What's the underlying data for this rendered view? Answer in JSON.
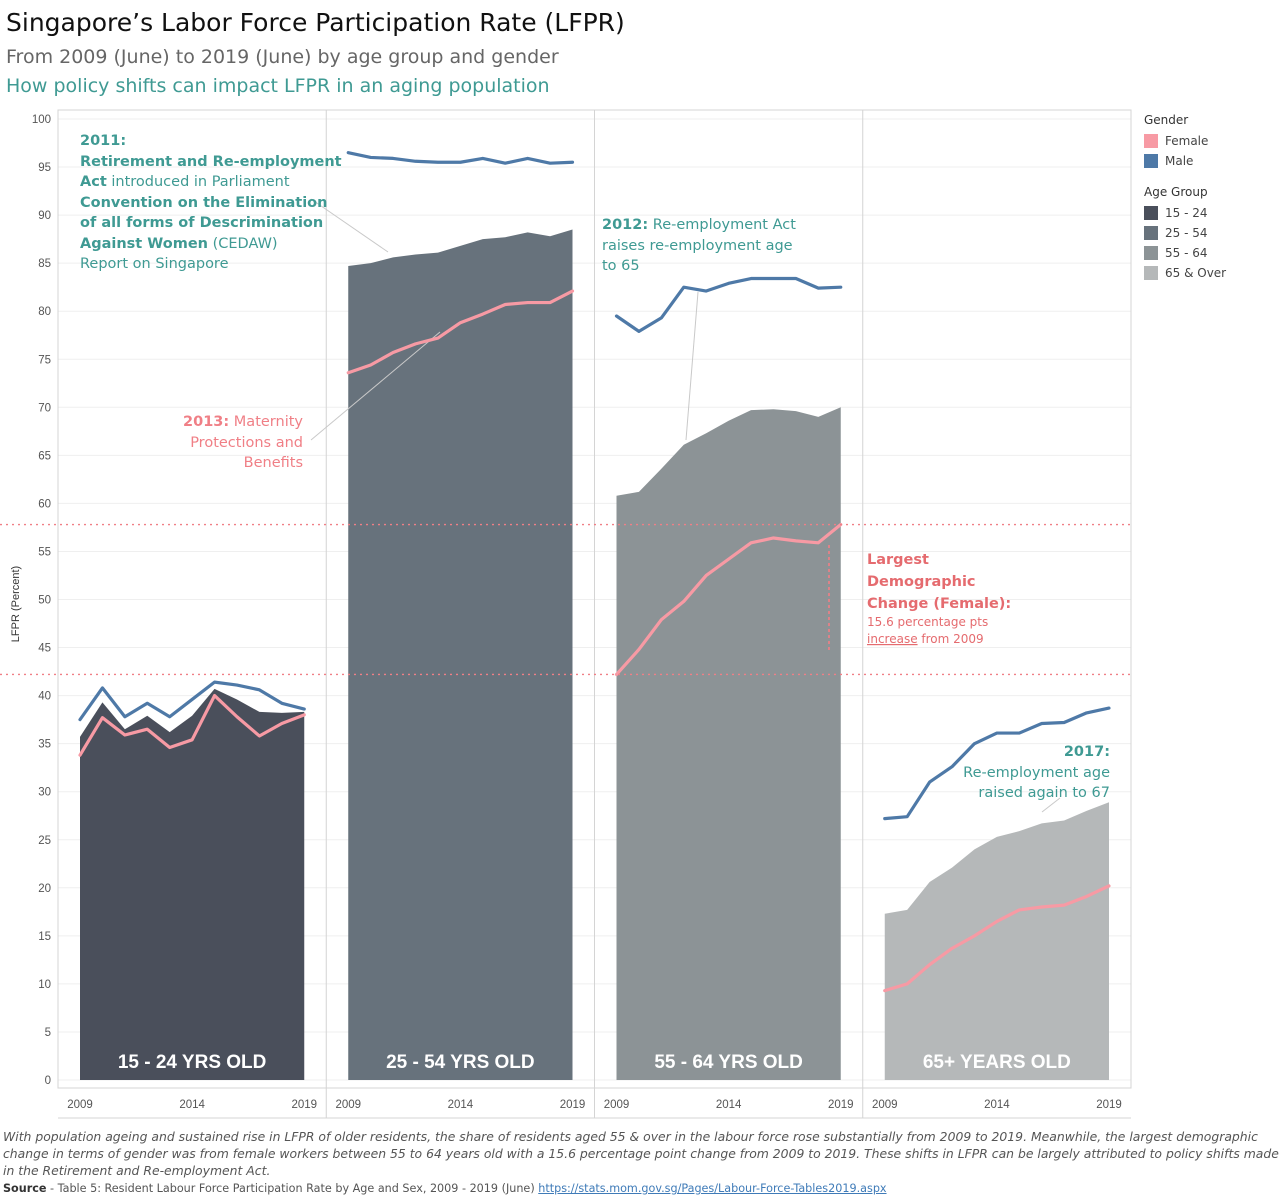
{
  "title": "Singapore’s Labor Force Participation Rate (LFPR)",
  "subtitle": "From 2009 (June) to 2019 (June) by age group and gender",
  "subtitle2": "How policy shifts can impact LFPR in an aging population",
  "colors": {
    "female": "#f79aa4",
    "male": "#4e79a7",
    "age_15_24": "#4a4f5b",
    "age_25_54": "#67727c",
    "age_55_64": "#8c9396",
    "age_65_over": "#b5b8b9",
    "teal_annotation": "#3f9a93",
    "pink_annotation": "#e56b6f"
  },
  "legend": {
    "gender_title": "Gender",
    "gender": [
      "Female",
      "Male"
    ],
    "age_title": "Age Group",
    "age_groups": [
      "15 - 24",
      "25 - 54",
      "55 - 64",
      "65 & Over"
    ]
  },
  "annotations": {
    "a2011_year": "2011:",
    "a2011_line1": "Retirement and Re-employment",
    "a2011_line2a": "Act",
    "a2011_line2b": " introduced in Parliament",
    "a2011_line3": "Convention on the Elimination",
    "a2011_line4": "of all forms of Descrimination",
    "a2011_line5a": "Against Women",
    "a2011_line5b": " (CEDAW)",
    "a2011_line6": "Report on Singapore",
    "a2013_line1a": "2013:",
    "a2013_line1b": " Maternity",
    "a2013_line2": "Protections and",
    "a2013_line3": "Benefits",
    "a2012_line1a": "2012:",
    "a2012_line1b": " Re-employment Act",
    "a2012_line2": "raises re-employment age",
    "a2012_line3": "to 65",
    "largest_line1": "Largest",
    "largest_line2": "Demographic",
    "largest_line3": "Change (Female):",
    "largest_line4": "15.6 percentage pts",
    "largest_line5a": "increase",
    "largest_line5b": " from 2009",
    "a2017_line1": "2017:",
    "a2017_line2": "Re-employment age",
    "a2017_line3": "raised again to 67"
  },
  "footer_text": "With population ageing and sustained rise in LFPR of older residents, the share of residents aged 55 & over in the labour force rose substantially from 2009 to 2019. Meanwhile, the largest demographic change in terms of gender was from female workers between 55 to 64 years old with a 15.6 percentage point change from 2009 to 2019. These shifts in LFPR can be largely attributed to policy shifts made in the Retirement and Re-employment Act.",
  "source_label": "Source",
  "source_text": " - Table 5: Resident Labour Force Participation Rate by Age and Sex, 2009 - 2019 (June) ",
  "source_link": "https://stats.mom.gov.sg/Pages/Labour-Force-Tables2019.aspx",
  "chart_data": {
    "type": "area",
    "ylabel": "LFPR (Percent)",
    "ylim": [
      0,
      100
    ],
    "yticks": [
      0,
      5,
      10,
      15,
      20,
      25,
      30,
      35,
      40,
      45,
      50,
      55,
      60,
      65,
      70,
      75,
      80,
      85,
      90,
      95,
      100
    ],
    "x": [
      2009,
      2010,
      2011,
      2012,
      2013,
      2014,
      2015,
      2016,
      2017,
      2018,
      2019
    ],
    "xtick_labels": [
      "2009",
      "2014",
      "2019"
    ],
    "reference_lines": [
      42.2,
      57.8
    ],
    "legend_position": "right",
    "panels": [
      {
        "label": "15 - 24 YRS OLD",
        "age_group": "15 - 24",
        "total": [
          35.7,
          39.3,
          36.5,
          37.9,
          36.2,
          37.9,
          40.7,
          39.6,
          38.3,
          38.2,
          38.3
        ],
        "male": [
          37.5,
          40.8,
          37.8,
          39.2,
          37.8,
          39.6,
          41.4,
          41.1,
          40.6,
          39.2,
          38.6
        ],
        "female": [
          33.8,
          37.7,
          35.9,
          36.5,
          34.6,
          35.4,
          40.0,
          37.8,
          35.8,
          37.1,
          38.0
        ]
      },
      {
        "label": "25 - 54 YRS OLD",
        "age_group": "25 - 54",
        "total": [
          84.7,
          85.0,
          85.6,
          85.9,
          86.1,
          86.8,
          87.5,
          87.7,
          88.2,
          87.8,
          88.5
        ],
        "male": [
          96.5,
          96.0,
          95.9,
          95.6,
          95.5,
          95.5,
          95.9,
          95.4,
          95.9,
          95.4,
          95.5
        ],
        "female": [
          73.6,
          74.4,
          75.7,
          76.6,
          77.2,
          78.8,
          79.7,
          80.7,
          80.9,
          80.9,
          82.1
        ]
      },
      {
        "label": "55 - 64 YRS OLD",
        "age_group": "55 - 64",
        "total": [
          60.8,
          61.2,
          63.6,
          66.1,
          67.3,
          68.6,
          69.7,
          69.8,
          69.6,
          69.0,
          70.0
        ],
        "male": [
          79.5,
          77.9,
          79.3,
          82.5,
          82.1,
          82.9,
          83.4,
          83.4,
          83.4,
          82.4,
          82.5
        ],
        "female": [
          42.2,
          44.8,
          47.9,
          49.8,
          52.5,
          54.2,
          55.9,
          56.4,
          56.1,
          55.9,
          57.8
        ]
      },
      {
        "label": "65+ YEARS OLD",
        "age_group": "65 & Over",
        "total": [
          17.3,
          17.7,
          20.6,
          22.1,
          24.0,
          25.3,
          25.9,
          26.7,
          27.0,
          28.0,
          28.9
        ],
        "male": [
          27.2,
          27.4,
          31.0,
          32.6,
          35.0,
          36.1,
          36.1,
          37.1,
          37.2,
          38.2,
          38.7
        ],
        "female": [
          9.3,
          10.0,
          12.0,
          13.7,
          15.0,
          16.5,
          17.7,
          18.0,
          18.2,
          19.1,
          20.2
        ]
      }
    ]
  }
}
